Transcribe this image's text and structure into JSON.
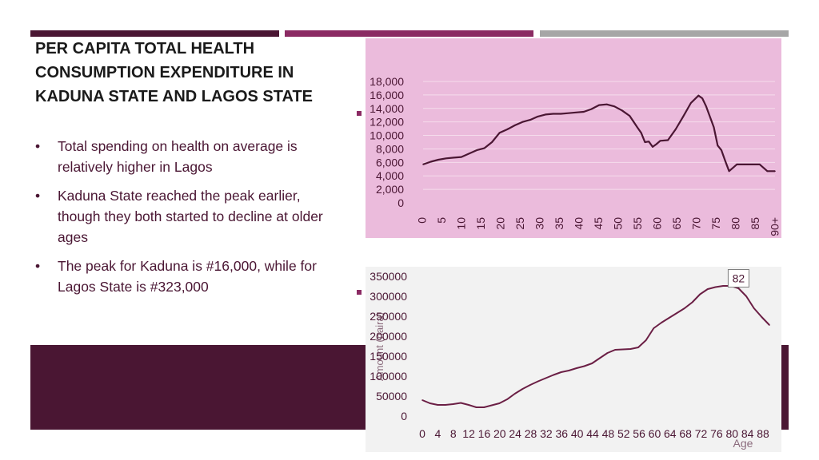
{
  "title": "PER CAPITA TOTAL HEALTH CONSUMPTION EXPENDITURE IN KADUNA STATE AND LAGOS STATE",
  "bullets": [
    "Total spending on health on average is relatively higher in Lagos",
    "Kaduna State reached the peak earlier, though they both started to decline at older ages",
    "The peak for Kaduna is #16,000, while for Lagos State is #323,000"
  ],
  "bullet_symbol": "•",
  "colors": {
    "dark": "#4a1633",
    "accent": "#8b2a63",
    "grey": "#a6a6a6",
    "chart1_bg": "#ebbbdc",
    "chart2_bg": "#f2f2f2",
    "line": "#4a1633"
  },
  "chart_data": [
    {
      "type": "line",
      "title": "",
      "xlabel": "",
      "ylabel": "",
      "ylim": [
        0,
        18000
      ],
      "yticks": [
        0,
        2000,
        4000,
        6000,
        8000,
        10000,
        12000,
        14000,
        16000,
        18000
      ],
      "ytick_labels": [
        "0",
        "2,000",
        "4,000",
        "6,000",
        "8,000",
        "10,000",
        "12,000",
        "14,000",
        "16,000",
        "18,000"
      ],
      "xtick_labels": [
        "0",
        "5",
        "10",
        "15",
        "20",
        "25",
        "30",
        "35",
        "40",
        "45",
        "50",
        "55",
        "60",
        "65",
        "70",
        "75",
        "80",
        "85",
        "90+"
      ],
      "x": [
        0,
        2,
        4,
        6,
        8,
        10,
        12,
        14,
        16,
        18,
        20,
        22,
        24,
        26,
        28,
        30,
        32,
        34,
        36,
        38,
        40,
        42,
        44,
        46,
        48,
        50,
        52,
        54,
        56,
        57,
        58,
        59,
        60,
        61,
        62,
        64,
        66,
        68,
        70,
        72,
        73,
        74,
        76,
        77,
        78,
        79,
        80,
        82,
        84,
        86,
        88,
        90,
        92
      ],
      "values": [
        5700,
        6100,
        6400,
        6600,
        6700,
        6800,
        7300,
        7800,
        8100,
        9000,
        10400,
        10900,
        11500,
        12000,
        12300,
        12800,
        13100,
        13200,
        13200,
        13300,
        13400,
        13500,
        13900,
        14500,
        14600,
        14300,
        13700,
        12900,
        11200,
        10400,
        9000,
        9100,
        8300,
        8700,
        9200,
        9300,
        10900,
        12800,
        14800,
        15900,
        15500,
        14300,
        11200,
        8500,
        7800,
        6200,
        4700,
        5700,
        5700,
        5700,
        5700,
        4700,
        4700
      ]
    },
    {
      "type": "line",
      "title": "",
      "xlabel": "Age",
      "ylabel": "Amount (naira)",
      "ylim": [
        0,
        350000
      ],
      "yticks": [
        0,
        50000,
        100000,
        150000,
        200000,
        250000,
        300000,
        350000
      ],
      "ytick_labels": [
        "0",
        "50000",
        "100000",
        "150000",
        "200000",
        "250000",
        "300000",
        "350000"
      ],
      "xtick_labels": [
        "0",
        "4",
        "8",
        "12",
        "16",
        "20",
        "24",
        "28",
        "32",
        "36",
        "40",
        "44",
        "48",
        "52",
        "56",
        "60",
        "64",
        "68",
        "72",
        "76",
        "80",
        "84",
        "88"
      ],
      "annotation": {
        "label": "82",
        "x": 82,
        "y": 323000
      },
      "x": [
        0,
        2,
        4,
        6,
        8,
        10,
        12,
        14,
        16,
        18,
        20,
        22,
        24,
        26,
        28,
        30,
        32,
        34,
        36,
        38,
        40,
        42,
        44,
        46,
        48,
        50,
        52,
        54,
        56,
        58,
        60,
        62,
        64,
        66,
        68,
        70,
        72,
        74,
        76,
        78,
        80,
        82,
        84,
        86,
        88,
        90
      ],
      "values": [
        40000,
        32000,
        28000,
        28000,
        30000,
        33000,
        28000,
        22000,
        22000,
        27000,
        32000,
        42000,
        56000,
        68000,
        78000,
        87000,
        95000,
        103000,
        110000,
        114000,
        120000,
        125000,
        132000,
        145000,
        158000,
        166000,
        167000,
        168000,
        172000,
        190000,
        220000,
        234000,
        246000,
        258000,
        270000,
        285000,
        305000,
        318000,
        323000,
        326000,
        326000,
        320000,
        300000,
        270000,
        248000,
        228000
      ]
    }
  ]
}
